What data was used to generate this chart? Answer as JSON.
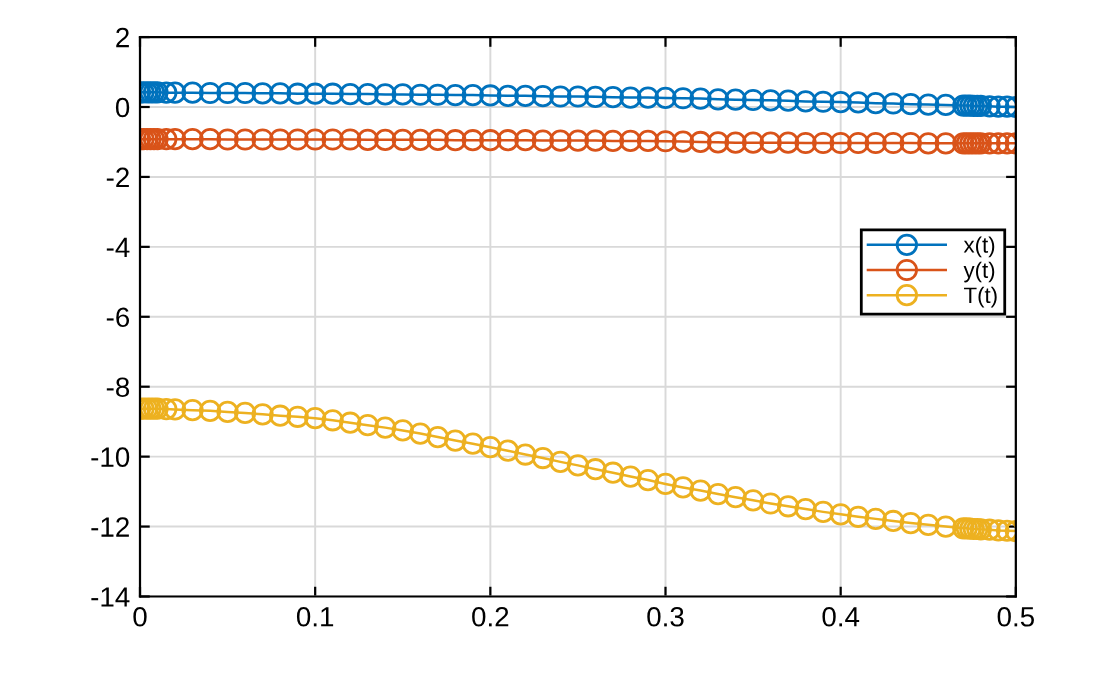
{
  "chart_data": {
    "type": "line",
    "marker": "circle",
    "line_style": "solid",
    "grid": true,
    "legend": "right",
    "x": [
      0,
      0.002,
      0.004,
      0.006,
      0.008,
      0.01,
      0.015,
      0.02,
      0.03,
      0.04,
      0.05,
      0.06,
      0.07,
      0.08,
      0.09,
      0.1,
      0.11,
      0.12,
      0.13,
      0.14,
      0.15,
      0.16,
      0.17,
      0.18,
      0.19,
      0.2,
      0.21,
      0.22,
      0.23,
      0.24,
      0.25,
      0.26,
      0.27,
      0.28,
      0.29,
      0.3,
      0.31,
      0.32,
      0.33,
      0.34,
      0.35,
      0.36,
      0.37,
      0.38,
      0.39,
      0.4,
      0.41,
      0.42,
      0.43,
      0.44,
      0.45,
      0.46,
      0.47,
      0.472,
      0.474,
      0.476,
      0.478,
      0.48,
      0.485,
      0.49,
      0.495,
      0.5
    ],
    "series": [
      {
        "name": "x(t)",
        "color": "#0072bd",
        "values": [
          0.42,
          0.42,
          0.42,
          0.42,
          0.42,
          0.42,
          0.41,
          0.41,
          0.41,
          0.4,
          0.4,
          0.4,
          0.39,
          0.39,
          0.38,
          0.38,
          0.38,
          0.37,
          0.37,
          0.36,
          0.36,
          0.35,
          0.35,
          0.34,
          0.34,
          0.33,
          0.32,
          0.32,
          0.31,
          0.3,
          0.3,
          0.29,
          0.28,
          0.27,
          0.27,
          0.26,
          0.25,
          0.24,
          0.22,
          0.21,
          0.2,
          0.19,
          0.18,
          0.16,
          0.15,
          0.14,
          0.13,
          0.11,
          0.1,
          0.08,
          0.07,
          0.06,
          0.04,
          0.04,
          0.04,
          0.03,
          0.03,
          0.03,
          0.02,
          0.01,
          0.01,
          0.0
        ]
      },
      {
        "name": "y(t)",
        "color": "#d95319",
        "values": [
          -0.92,
          -0.92,
          -0.92,
          -0.92,
          -0.92,
          -0.92,
          -0.92,
          -0.92,
          -0.92,
          -0.92,
          -0.93,
          -0.93,
          -0.93,
          -0.93,
          -0.93,
          -0.93,
          -0.93,
          -0.93,
          -0.94,
          -0.94,
          -0.94,
          -0.94,
          -0.94,
          -0.95,
          -0.95,
          -0.95,
          -0.95,
          -0.95,
          -0.96,
          -0.96,
          -0.96,
          -0.96,
          -0.97,
          -0.97,
          -0.97,
          -0.98,
          -0.99,
          -1.0,
          -1.01,
          -1.02,
          -1.02,
          -1.02,
          -1.02,
          -1.03,
          -1.03,
          -1.03,
          -1.03,
          -1.03,
          -1.03,
          -1.03,
          -1.04,
          -1.04,
          -1.04,
          -1.04,
          -1.04,
          -1.04,
          -1.04,
          -1.04,
          -1.04,
          -1.04,
          -1.04,
          -1.04
        ]
      },
      {
        "name": "T(t)",
        "color": "#edb120",
        "values": [
          -8.63,
          -8.63,
          -8.63,
          -8.63,
          -8.63,
          -8.63,
          -8.64,
          -8.65,
          -8.67,
          -8.69,
          -8.72,
          -8.75,
          -8.79,
          -8.83,
          -8.86,
          -8.9,
          -8.96,
          -9.03,
          -9.1,
          -9.17,
          -9.25,
          -9.34,
          -9.44,
          -9.54,
          -9.63,
          -9.73,
          -9.83,
          -9.94,
          -10.04,
          -10.15,
          -10.25,
          -10.36,
          -10.46,
          -10.57,
          -10.67,
          -10.78,
          -10.88,
          -10.97,
          -11.07,
          -11.16,
          -11.25,
          -11.34,
          -11.42,
          -11.5,
          -11.58,
          -11.65,
          -11.72,
          -11.78,
          -11.84,
          -11.9,
          -11.95,
          -12.0,
          -12.05,
          -12.05,
          -12.06,
          -12.07,
          -12.07,
          -12.08,
          -12.09,
          -12.11,
          -12.12,
          -12.13
        ]
      }
    ],
    "xlim": [
      0,
      0.5
    ],
    "xticks": [
      0,
      0.1,
      0.2,
      0.3,
      0.4,
      0.5
    ],
    "ylim": [
      -14,
      2
    ],
    "yticks": [
      -14,
      -12,
      -10,
      -8,
      -6,
      -4,
      -2,
      0,
      2
    ]
  }
}
